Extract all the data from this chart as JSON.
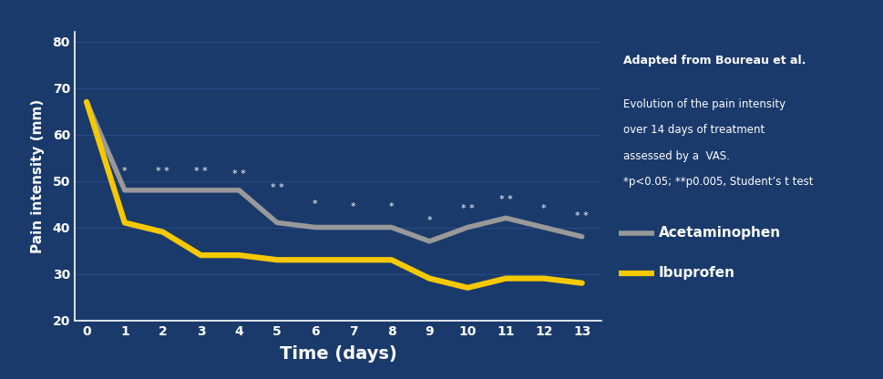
{
  "background_color": "#1a3a6b",
  "acetaminophen": [
    67,
    48,
    48,
    48,
    48,
    41,
    40,
    40,
    40,
    37,
    40,
    42,
    40,
    38
  ],
  "ibuprofen": [
    67,
    41,
    39,
    34,
    34,
    33,
    33,
    33,
    33,
    29,
    27,
    29,
    29,
    28
  ],
  "days": [
    0,
    1,
    2,
    3,
    4,
    5,
    6,
    7,
    8,
    9,
    10,
    11,
    12,
    13
  ],
  "aceta_color": "#999999",
  "ibup_color": "#f5c800",
  "ylim": [
    20,
    82
  ],
  "yticks": [
    20,
    30,
    40,
    50,
    60,
    70,
    80
  ],
  "xlabel": "Time (days)",
  "ylabel": "Pain intensity (mm)",
  "tick_color": "white",
  "title_text": "Adapted from Boureau et al.",
  "subtitle_lines": [
    "Evolution of the pain intensity",
    "over 14 days of treatment",
    "assessed by a  VAS.",
    "*p<0.05; **p0.005, Student’s t test"
  ],
  "legend_aceta": "Acetaminophen",
  "legend_ibup": "Ibuprofen",
  "annotations": [
    {
      "day": 1,
      "symbol": "*",
      "y": 51.0
    },
    {
      "day": 2,
      "symbol": "* *",
      "y": 51.0
    },
    {
      "day": 3,
      "symbol": "* *",
      "y": 51.0
    },
    {
      "day": 4,
      "symbol": "* *",
      "y": 50.5
    },
    {
      "day": 5,
      "symbol": "* *",
      "y": 47.5
    },
    {
      "day": 6,
      "symbol": "*",
      "y": 44.0
    },
    {
      "day": 7,
      "symbol": "*",
      "y": 43.5
    },
    {
      "day": 8,
      "symbol": "*",
      "y": 43.5
    },
    {
      "day": 9,
      "symbol": "*",
      "y": 40.5
    },
    {
      "day": 10,
      "symbol": "* *",
      "y": 43.0
    },
    {
      "day": 11,
      "symbol": "* *",
      "y": 45.0
    },
    {
      "day": 12,
      "symbol": "*",
      "y": 43.0
    },
    {
      "day": 13,
      "symbol": "* *",
      "y": 41.5
    }
  ]
}
